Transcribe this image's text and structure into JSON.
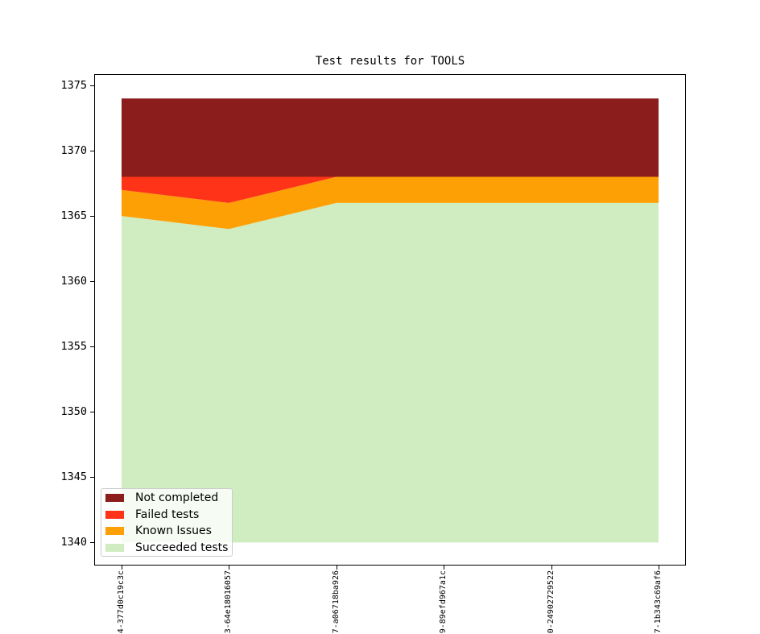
{
  "figure": {
    "background": "#ffffff",
    "spine_color": "#000000",
    "text_color": "#000000"
  },
  "chart_data": {
    "type": "area",
    "stacked": true,
    "title": "Test results for TOOLS",
    "grid": false,
    "categories": [
      "4-377d0c19c3c",
      "3-64e18016057",
      "7-a06718ba926",
      "9-89efd967a1c",
      "0-24902729522",
      "7-1b343c69af6"
    ],
    "baseline": 1340,
    "ylim": [
      1338.3,
      1375.8
    ],
    "yticks": [
      1340,
      1345,
      1350,
      1355,
      1360,
      1365,
      1370,
      1375
    ],
    "series": [
      {
        "name": "Succeeded tests",
        "color": "#CFEDC1",
        "cumulative_top": [
          1365,
          1364,
          1366,
          1366,
          1366,
          1366
        ],
        "amounts": [
          1365,
          1364,
          1366,
          1366,
          1366,
          1366
        ]
      },
      {
        "name": "Known Issues",
        "color": "#FDA005",
        "cumulative_top": [
          1367,
          1366,
          1368,
          1368,
          1368,
          1368
        ],
        "amounts": [
          2,
          2,
          2,
          2,
          2,
          2
        ]
      },
      {
        "name": "Failed tests",
        "color": "#FF3317",
        "cumulative_top": [
          1368,
          1368,
          1368,
          1368,
          1368,
          1368
        ],
        "amounts": [
          1,
          2,
          0,
          0,
          0,
          0
        ]
      },
      {
        "name": "Not completed",
        "color": "#8B1D1D",
        "cumulative_top": [
          1374,
          1374,
          1374,
          1374,
          1374,
          1374
        ],
        "amounts": [
          6,
          6,
          6,
          6,
          6,
          6
        ]
      }
    ],
    "legend": {
      "position": "lower left",
      "entries": [
        "Not completed",
        "Failed tests",
        "Known Issues",
        "Succeeded tests"
      ]
    }
  }
}
